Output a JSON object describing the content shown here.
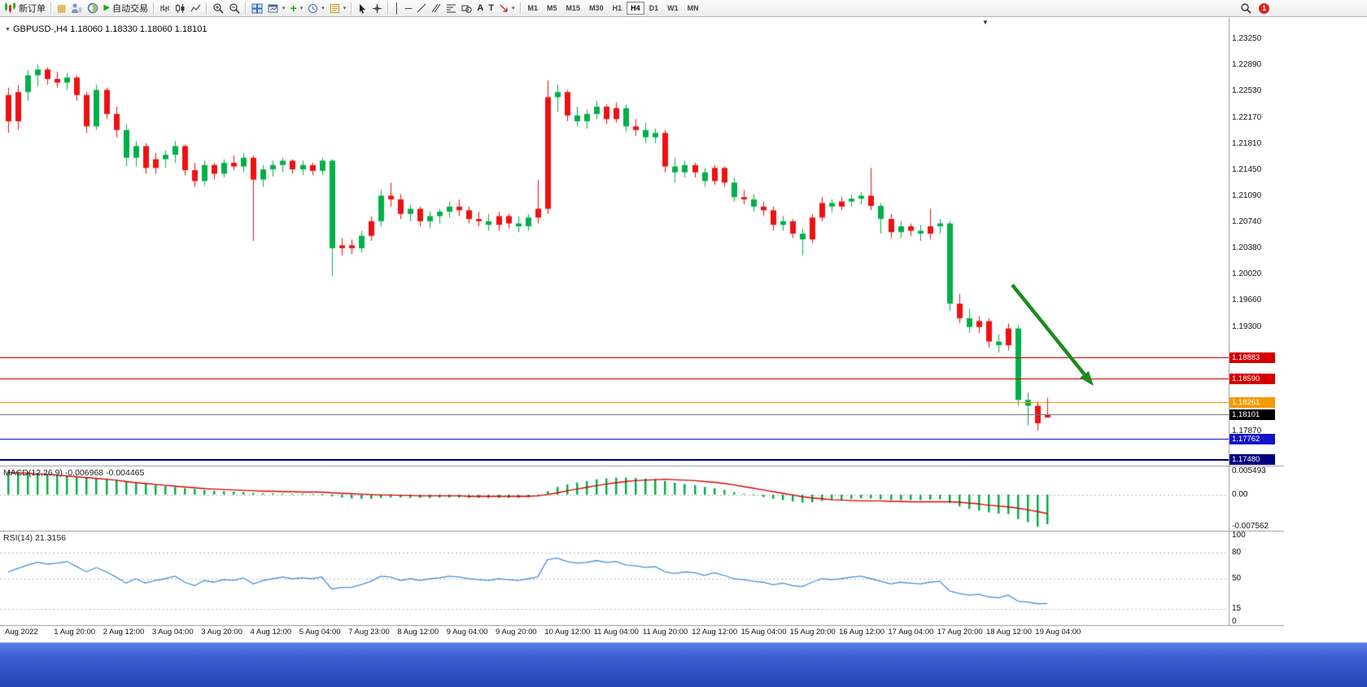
{
  "toolbar": {
    "new_order_label": "新订单",
    "auto_trading_label": "自动交易",
    "text_tool_label": "A",
    "label_tool_label": "T",
    "timeframes": [
      "M1",
      "M5",
      "M15",
      "M30",
      "H1",
      "H4",
      "D1",
      "W1",
      "MN"
    ],
    "active_timeframe": "H4",
    "notification_count": "1"
  },
  "chart": {
    "symbol_ohlc_label": "GBPUSD-,H4 1.18060 1.18330 1.18060 1.18101",
    "price_axis_labels": [
      "1.23250",
      "1.22890",
      "1.22530",
      "1.22170",
      "1.21810",
      "1.21450",
      "1.21090",
      "1.20740",
      "1.20380",
      "1.20020",
      "1.19660",
      "1.19300",
      "1.17870"
    ],
    "levels": [
      {
        "label": "1.18883",
        "value": 1.18883,
        "color": "#d40000"
      },
      {
        "label": "1.18590",
        "value": 1.1859,
        "color": "#d40000"
      },
      {
        "label": "1.18261",
        "value": 1.18261,
        "color": "#f59a00"
      },
      {
        "label": "1.18101",
        "value": 1.18101,
        "color": "#7a7a7a",
        "box_color": "#000000"
      },
      {
        "label": "1.17762",
        "value": 1.17762,
        "color": "#1414c8"
      },
      {
        "label": "1.17480",
        "value": 1.1748,
        "color": "#000080",
        "thick": 2
      }
    ]
  },
  "macd": {
    "label": "MACD(12,26,9) -0.006968 -0.004465",
    "axis_labels": [
      "0.005493",
      "0.00",
      "-0.007562"
    ]
  },
  "rsi": {
    "label": "RSI(14) 21.3156",
    "axis_labels": [
      "100",
      "80",
      "50",
      "15",
      "0"
    ]
  },
  "time_axis": [
    "Aug 2022",
    "1 Aug 20:00",
    "2 Aug 12:00",
    "3 Aug 04:00",
    "3 Aug 20:00",
    "4 Aug 12:00",
    "5 Aug 04:00",
    "7 Aug 23:00",
    "8 Aug 12:00",
    "9 Aug 04:00",
    "9 Aug 20:00",
    "10 Aug 12:00",
    "11 Aug 04:00",
    "11 Aug 20:00",
    "12 Aug 12:00",
    "15 Aug 04:00",
    "15 Aug 20:00",
    "16 Aug 12:00",
    "17 Aug 04:00",
    "17 Aug 20:00",
    "18 Aug 12:00",
    "19 Aug 04:00"
  ],
  "chart_data": [
    {
      "type": "candlestick",
      "title": "GBPUSD H4",
      "ylim": [
        1.174,
        1.2347
      ],
      "up_color": "#00b04a",
      "down_color": "#ee1111",
      "candles": [
        [
          1.2248,
          1.2258,
          1.2196,
          1.2212,
          "r"
        ],
        [
          1.2212,
          1.2262,
          1.22,
          1.2252,
          "r"
        ],
        [
          1.2252,
          1.2282,
          1.224,
          1.2275,
          "g"
        ],
        [
          1.2275,
          1.229,
          1.226,
          1.2283,
          "g"
        ],
        [
          1.2283,
          1.2286,
          1.2262,
          1.227,
          "r"
        ],
        [
          1.227,
          1.228,
          1.2258,
          1.2265,
          "r"
        ],
        [
          1.2265,
          1.2278,
          1.2255,
          1.2272,
          "g"
        ],
        [
          1.2272,
          1.2275,
          1.224,
          1.2248,
          "r"
        ],
        [
          1.2248,
          1.2252,
          1.2196,
          1.2205,
          "r"
        ],
        [
          1.2205,
          1.2262,
          1.22,
          1.2255,
          "g"
        ],
        [
          1.2255,
          1.2258,
          1.2215,
          1.2222,
          "r"
        ],
        [
          1.2222,
          1.2232,
          1.219,
          1.22,
          "r"
        ],
        [
          1.22,
          1.2208,
          1.215,
          1.2162,
          "g"
        ],
        [
          1.2162,
          1.2185,
          1.215,
          1.2178,
          "g"
        ],
        [
          1.2178,
          1.2182,
          1.214,
          1.2148,
          "r"
        ],
        [
          1.2148,
          1.2168,
          1.214,
          1.216,
          "r"
        ],
        [
          1.216,
          1.2172,
          1.2148,
          1.2166,
          "g"
        ],
        [
          1.2166,
          1.2185,
          1.2155,
          1.2178,
          "g"
        ],
        [
          1.2178,
          1.218,
          1.2138,
          1.2145,
          "r"
        ],
        [
          1.2145,
          1.2155,
          1.2122,
          1.213,
          "r"
        ],
        [
          1.213,
          1.2158,
          1.2124,
          1.2152,
          "g"
        ],
        [
          1.2152,
          1.2155,
          1.2132,
          1.214,
          "r"
        ],
        [
          1.214,
          1.216,
          1.2135,
          1.2155,
          "g"
        ],
        [
          1.2155,
          1.2165,
          1.2145,
          1.215,
          "r"
        ],
        [
          1.215,
          1.2168,
          1.2142,
          1.2162,
          "g"
        ],
        [
          1.2162,
          1.2165,
          1.2048,
          1.2132,
          "r"
        ],
        [
          1.2132,
          1.2152,
          1.2122,
          1.2146,
          "g"
        ],
        [
          1.2146,
          1.2158,
          1.2136,
          1.2152,
          "g"
        ],
        [
          1.2152,
          1.2162,
          1.2142,
          1.2158,
          "g"
        ],
        [
          1.2158,
          1.216,
          1.214,
          1.2146,
          "r"
        ],
        [
          1.2146,
          1.2158,
          1.2138,
          1.2152,
          "g"
        ],
        [
          1.2152,
          1.2155,
          1.2138,
          1.2144,
          "r"
        ],
        [
          1.2144,
          1.2162,
          1.2138,
          1.2158,
          "g"
        ],
        [
          1.2158,
          1.216,
          1.2,
          1.2038,
          "g"
        ],
        [
          1.2038,
          1.2052,
          1.2028,
          1.2042,
          "r"
        ],
        [
          1.2042,
          1.205,
          1.203,
          1.2038,
          "r"
        ],
        [
          1.2038,
          1.2062,
          1.2032,
          1.2055,
          "g"
        ],
        [
          1.2055,
          1.2082,
          1.2048,
          1.2075,
          "r"
        ],
        [
          1.2075,
          1.2118,
          1.2068,
          1.211,
          "g"
        ],
        [
          1.211,
          1.2128,
          1.2095,
          1.2105,
          "r"
        ],
        [
          1.2105,
          1.2112,
          1.2078,
          1.2085,
          "r"
        ],
        [
          1.2085,
          1.2098,
          1.2075,
          1.2092,
          "g"
        ],
        [
          1.2092,
          1.2095,
          1.2068,
          1.2075,
          "r"
        ],
        [
          1.2075,
          1.2088,
          1.2065,
          1.2082,
          "g"
        ],
        [
          1.2082,
          1.2092,
          1.2072,
          1.2088,
          "g"
        ],
        [
          1.2088,
          1.2102,
          1.208,
          1.2095,
          "g"
        ],
        [
          1.2095,
          1.2105,
          1.2082,
          1.209,
          "r"
        ],
        [
          1.209,
          1.2095,
          1.2072,
          1.2078,
          "r"
        ],
        [
          1.2078,
          1.2088,
          1.2068,
          1.2075,
          "r"
        ],
        [
          1.2075,
          1.2085,
          1.2062,
          1.207,
          "g"
        ],
        [
          1.207,
          1.2088,
          1.2062,
          1.2082,
          "r"
        ],
        [
          1.2082,
          1.2085,
          1.2065,
          1.2072,
          "r"
        ],
        [
          1.2072,
          1.2082,
          1.206,
          1.2068,
          "g"
        ],
        [
          1.2068,
          1.2085,
          1.2062,
          1.208,
          "g"
        ],
        [
          1.208,
          1.2132,
          1.2072,
          1.2092,
          "r"
        ],
        [
          1.2092,
          1.2268,
          1.2085,
          1.2245,
          "r"
        ],
        [
          1.2245,
          1.2262,
          1.2225,
          1.2252,
          "g"
        ],
        [
          1.2252,
          1.2255,
          1.2212,
          1.222,
          "r"
        ],
        [
          1.222,
          1.2232,
          1.2205,
          1.2212,
          "g"
        ],
        [
          1.2212,
          1.2228,
          1.2202,
          1.2222,
          "g"
        ],
        [
          1.2222,
          1.224,
          1.2215,
          1.2232,
          "g"
        ],
        [
          1.2232,
          1.2235,
          1.2208,
          1.2215,
          "r"
        ],
        [
          1.2215,
          1.2238,
          1.221,
          1.223,
          "r"
        ],
        [
          1.223,
          1.2235,
          1.2198,
          1.2205,
          "g"
        ],
        [
          1.2205,
          1.2215,
          1.2192,
          1.22,
          "r"
        ],
        [
          1.22,
          1.221,
          1.2182,
          1.219,
          "g"
        ],
        [
          1.219,
          1.2202,
          1.2182,
          1.2196,
          "g"
        ],
        [
          1.2196,
          1.22,
          1.2142,
          1.215,
          "r"
        ],
        [
          1.215,
          1.2162,
          1.2128,
          1.2142,
          "g"
        ],
        [
          1.2142,
          1.2158,
          1.2135,
          1.2152,
          "g"
        ],
        [
          1.2152,
          1.2155,
          1.2135,
          1.2142,
          "r"
        ],
        [
          1.2142,
          1.2148,
          1.2122,
          1.213,
          "g"
        ],
        [
          1.213,
          1.2152,
          1.2125,
          1.2148,
          "r"
        ],
        [
          1.2148,
          1.215,
          1.2122,
          1.2128,
          "r"
        ],
        [
          1.2128,
          1.2135,
          1.2102,
          1.2108,
          "g"
        ],
        [
          1.2108,
          1.2118,
          1.2098,
          1.2105,
          "r"
        ],
        [
          1.2105,
          1.2112,
          1.2088,
          1.2095,
          "g"
        ],
        [
          1.2095,
          1.2102,
          1.2082,
          1.209,
          "r"
        ],
        [
          1.209,
          1.2095,
          1.2062,
          1.207,
          "r"
        ],
        [
          1.207,
          1.2082,
          1.2062,
          1.2075,
          "g"
        ],
        [
          1.2075,
          1.2078,
          1.2052,
          1.2058,
          "r"
        ],
        [
          1.2058,
          1.2065,
          1.2028,
          1.205,
          "g"
        ],
        [
          1.205,
          1.2085,
          1.2045,
          1.208,
          "r"
        ],
        [
          1.208,
          1.2108,
          1.2075,
          1.21,
          "r"
        ],
        [
          1.21,
          1.2105,
          1.2088,
          1.2095,
          "g"
        ],
        [
          1.2095,
          1.2108,
          1.209,
          1.2102,
          "r"
        ],
        [
          1.2102,
          1.2112,
          1.2095,
          1.2106,
          "g"
        ],
        [
          1.2106,
          1.2115,
          1.2098,
          1.211,
          "g"
        ],
        [
          1.211,
          1.2148,
          1.209,
          1.2096,
          "r"
        ],
        [
          1.2096,
          1.21,
          1.2058,
          1.2078,
          "g"
        ],
        [
          1.2078,
          1.2085,
          1.2052,
          1.206,
          "r"
        ],
        [
          1.206,
          1.2075,
          1.2052,
          1.2068,
          "g"
        ],
        [
          1.2068,
          1.2072,
          1.2055,
          1.2062,
          "r"
        ],
        [
          1.2062,
          1.207,
          1.2048,
          1.2058,
          "g"
        ],
        [
          1.2058,
          1.2092,
          1.205,
          1.2068,
          "r"
        ],
        [
          1.2068,
          1.2078,
          1.2058,
          1.2072,
          "g"
        ],
        [
          1.2072,
          1.2075,
          1.1952,
          1.1962,
          "g"
        ],
        [
          1.1962,
          1.1975,
          1.1935,
          1.1942,
          "r"
        ],
        [
          1.1942,
          1.1955,
          1.1922,
          1.193,
          "g"
        ],
        [
          1.193,
          1.1945,
          1.1922,
          1.1938,
          "r"
        ],
        [
          1.1938,
          1.1942,
          1.1902,
          1.191,
          "r"
        ],
        [
          1.191,
          1.192,
          1.1895,
          1.1905,
          "g"
        ],
        [
          1.1905,
          1.1935,
          1.1898,
          1.1928,
          "r"
        ],
        [
          1.1928,
          1.1932,
          1.1822,
          1.183,
          "g"
        ],
        [
          1.183,
          1.184,
          1.1795,
          1.1822,
          "g"
        ],
        [
          1.1822,
          1.1828,
          1.1788,
          1.1798,
          "r"
        ],
        [
          1.1806,
          1.1833,
          1.1806,
          1.181,
          "r"
        ]
      ]
    },
    {
      "type": "bar",
      "name": "MACD histogram",
      "color": "#00b04a",
      "ylim": [
        -0.007562,
        0.005493
      ],
      "values": [
        0.0055,
        0.0054,
        0.0053,
        0.0051,
        0.0049,
        0.0047,
        0.0045,
        0.0043,
        0.0041,
        0.0039,
        0.0037,
        0.0035,
        0.0032,
        0.0029,
        0.0026,
        0.0023,
        0.002,
        0.0018,
        0.0015,
        0.0013,
        0.0011,
        0.0009,
        0.0008,
        0.0007,
        0.0006,
        0.0004,
        0.0003,
        0.0003,
        0.0002,
        0.0002,
        0.0002,
        0.0001,
        0.0001,
        -0.0004,
        -0.0007,
        -0.0009,
        -0.001,
        -0.001,
        -0.0008,
        -0.0007,
        -0.0007,
        -0.0008,
        -0.0008,
        -0.0008,
        -0.0007,
        -0.0007,
        -0.0007,
        -0.0008,
        -0.0008,
        -0.0008,
        -0.0008,
        -0.0008,
        -0.0008,
        -0.0007,
        -0.0004,
        0.0008,
        0.0018,
        0.0024,
        0.0028,
        0.0032,
        0.0036,
        0.0038,
        0.004,
        0.004,
        0.0039,
        0.0038,
        0.0037,
        0.0032,
        0.0028,
        0.0025,
        0.0022,
        0.0018,
        0.0015,
        0.0011,
        0.0006,
        0.0002,
        -0.0002,
        -0.0006,
        -0.001,
        -0.0013,
        -0.0016,
        -0.0019,
        -0.0018,
        -0.0015,
        -0.0013,
        -0.0012,
        -0.001,
        -0.0009,
        -0.0009,
        -0.0011,
        -0.0013,
        -0.0013,
        -0.0013,
        -0.0013,
        -0.0012,
        -0.0011,
        -0.002,
        -0.0028,
        -0.0034,
        -0.0038,
        -0.0042,
        -0.0045,
        -0.0046,
        -0.0058,
        -0.0065,
        -0.0076,
        -0.007
      ]
    },
    {
      "type": "line",
      "name": "MACD signal",
      "color": "#e00000",
      "values": [
        0.0052,
        0.0051,
        0.005,
        0.0049,
        0.0048,
        0.0046,
        0.0044,
        0.0042,
        0.004,
        0.0038,
        0.0036,
        0.0034,
        0.0031,
        0.0028,
        0.0026,
        0.0024,
        0.0022,
        0.002,
        0.0018,
        0.0016,
        0.0014,
        0.0013,
        0.0012,
        0.0011,
        0.001,
        0.0009,
        0.0008,
        0.0008,
        0.0007,
        0.0007,
        0.0006,
        0.0006,
        0.0006,
        0.0004,
        0.0003,
        0.0002,
        0.0001,
        0.0,
        -0.0001,
        -0.0001,
        -0.0002,
        -0.0002,
        -0.0003,
        -0.0003,
        -0.0003,
        -0.0003,
        -0.0003,
        -0.0004,
        -0.0004,
        -0.0004,
        -0.0004,
        -0.0004,
        -0.0004,
        -0.0004,
        -0.0003,
        0.0,
        0.0004,
        0.0009,
        0.0013,
        0.0017,
        0.0021,
        0.0025,
        0.0028,
        0.0031,
        0.0033,
        0.0034,
        0.0035,
        0.0036,
        0.0035,
        0.0034,
        0.0033,
        0.0031,
        0.0029,
        0.0026,
        0.0023,
        0.0019,
        0.0015,
        0.0011,
        0.0007,
        0.0003,
        -0.0001,
        -0.0005,
        -0.0008,
        -0.001,
        -0.0012,
        -0.0013,
        -0.0014,
        -0.0015,
        -0.0015,
        -0.0015,
        -0.0016,
        -0.0016,
        -0.0017,
        -0.0017,
        -0.0017,
        -0.0017,
        -0.0017,
        -0.0018,
        -0.002,
        -0.0022,
        -0.0025,
        -0.0027,
        -0.0029,
        -0.0032,
        -0.0036,
        -0.004,
        -0.0045
      ]
    },
    {
      "type": "line",
      "name": "RSI",
      "color": "#4a90d9",
      "ylim": [
        0,
        100
      ],
      "levels": [
        80,
        50,
        15
      ],
      "values": [
        58,
        62,
        66,
        69,
        67,
        68,
        70,
        64,
        58,
        63,
        58,
        52,
        45,
        50,
        45,
        48,
        50,
        53,
        46,
        42,
        48,
        46,
        49,
        48,
        51,
        44,
        48,
        50,
        52,
        50,
        51,
        50,
        52,
        38,
        40,
        40,
        43,
        47,
        53,
        52,
        48,
        50,
        48,
        50,
        51,
        53,
        52,
        50,
        49,
        48,
        50,
        49,
        48,
        50,
        52,
        72,
        74,
        70,
        68,
        69,
        71,
        69,
        70,
        66,
        65,
        63,
        64,
        58,
        56,
        58,
        57,
        54,
        57,
        54,
        50,
        49,
        47,
        46,
        43,
        45,
        42,
        41,
        46,
        50,
        49,
        50,
        52,
        53,
        50,
        47,
        44,
        46,
        45,
        44,
        46,
        47,
        36,
        33,
        31,
        32,
        29,
        28,
        31,
        24,
        23,
        21,
        21.3
      ]
    }
  ],
  "annotation_arrow": {
    "color": "#1e8a1e"
  }
}
